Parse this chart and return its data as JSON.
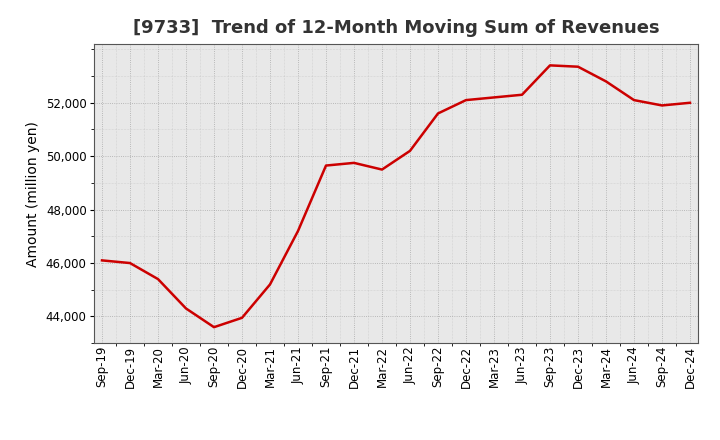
{
  "title": "[9733]  Trend of 12-Month Moving Sum of Revenues",
  "ylabel": "Amount (million yen)",
  "line_color": "#cc0000",
  "background_color": "#ffffff",
  "plot_bg_color": "#e8e8e8",
  "grid_color": "#999999",
  "x_labels": [
    "Sep-19",
    "Dec-19",
    "Mar-20",
    "Jun-20",
    "Sep-20",
    "Dec-20",
    "Mar-21",
    "Jun-21",
    "Sep-21",
    "Dec-21",
    "Mar-22",
    "Jun-22",
    "Sep-22",
    "Dec-22",
    "Mar-23",
    "Jun-23",
    "Sep-23",
    "Dec-23",
    "Mar-24",
    "Jun-24",
    "Sep-24",
    "Dec-24"
  ],
  "values": [
    46100,
    46000,
    45400,
    44300,
    43600,
    43950,
    45200,
    47200,
    49650,
    49750,
    49500,
    50200,
    51600,
    52100,
    52200,
    52300,
    53400,
    53350,
    52800,
    52100,
    51900,
    52000
  ],
  "ylim": [
    43000,
    54200
  ],
  "yticks": [
    44000,
    46000,
    48000,
    50000,
    52000
  ],
  "title_fontsize": 13,
  "label_fontsize": 10,
  "tick_fontsize": 8.5
}
